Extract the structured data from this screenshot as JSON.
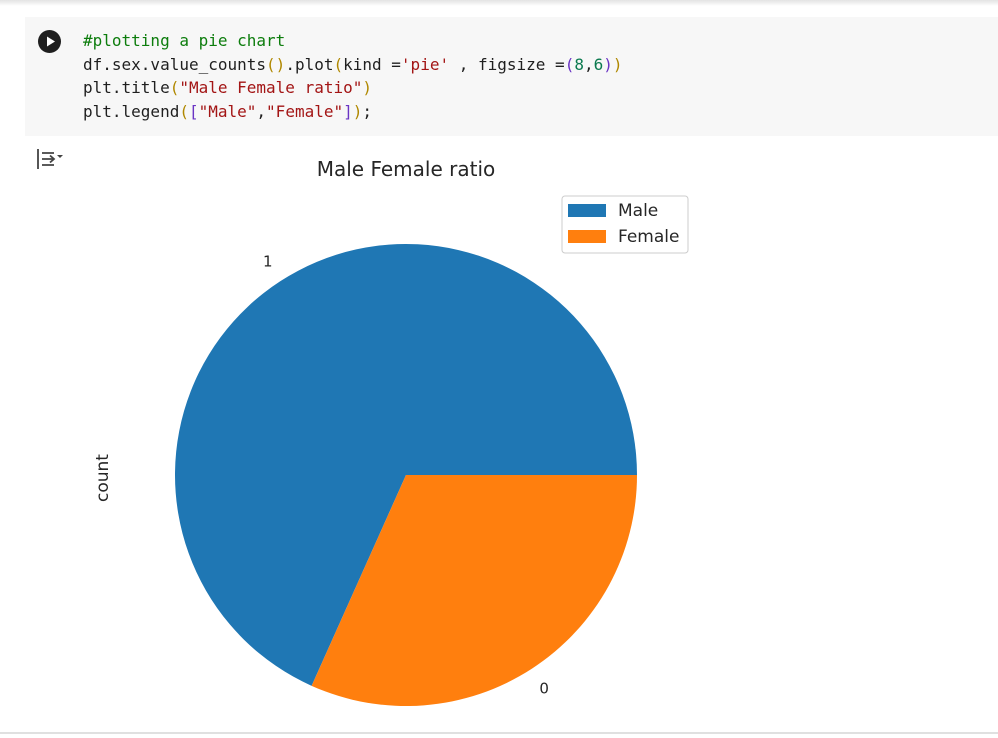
{
  "cell": {
    "code_lines": [
      [
        {
          "t": "#plotting a pie chart",
          "c": "c-com"
        }
      ],
      [
        {
          "t": "df.sex.value_counts",
          "c": ""
        },
        {
          "t": "(",
          "c": "c-p1"
        },
        {
          "t": ")",
          "c": "c-p1"
        },
        {
          "t": ".plot",
          "c": ""
        },
        {
          "t": "(",
          "c": "c-p1"
        },
        {
          "t": "kind =",
          "c": ""
        },
        {
          "t": "'pie'",
          "c": "c-str"
        },
        {
          "t": " , figsize =",
          "c": ""
        },
        {
          "t": "(",
          "c": "c-p2"
        },
        {
          "t": "8",
          "c": "c-num"
        },
        {
          "t": ",",
          "c": ""
        },
        {
          "t": "6",
          "c": "c-num"
        },
        {
          "t": ")",
          "c": "c-p2"
        },
        {
          "t": ")",
          "c": "c-p1"
        }
      ],
      [
        {
          "t": "plt.title",
          "c": ""
        },
        {
          "t": "(",
          "c": "c-p1"
        },
        {
          "t": "\"Male Female ratio\"",
          "c": "c-str"
        },
        {
          "t": ")",
          "c": "c-p1"
        }
      ],
      [
        {
          "t": "plt.legend",
          "c": ""
        },
        {
          "t": "(",
          "c": "c-p1"
        },
        {
          "t": "[",
          "c": "c-p2"
        },
        {
          "t": "\"Male\"",
          "c": "c-str"
        },
        {
          "t": ",",
          "c": ""
        },
        {
          "t": "\"Female\"",
          "c": "c-str"
        },
        {
          "t": "]",
          "c": "c-p2"
        },
        {
          "t": ")",
          "c": "c-p1"
        },
        {
          "t": ";",
          "c": ""
        }
      ]
    ],
    "run_icon": "play-icon",
    "output_icon": "output-toggle-icon"
  },
  "chart_data": {
    "type": "pie",
    "title": "Male Female ratio",
    "ylabel": "count",
    "categories": [
      "1",
      "0"
    ],
    "values": [
      0.683,
      0.317
    ],
    "colors": [
      "#1f77b4",
      "#ff7f0e"
    ],
    "legend": {
      "entries": [
        "Male",
        "Female"
      ],
      "placement": "upper right"
    }
  }
}
